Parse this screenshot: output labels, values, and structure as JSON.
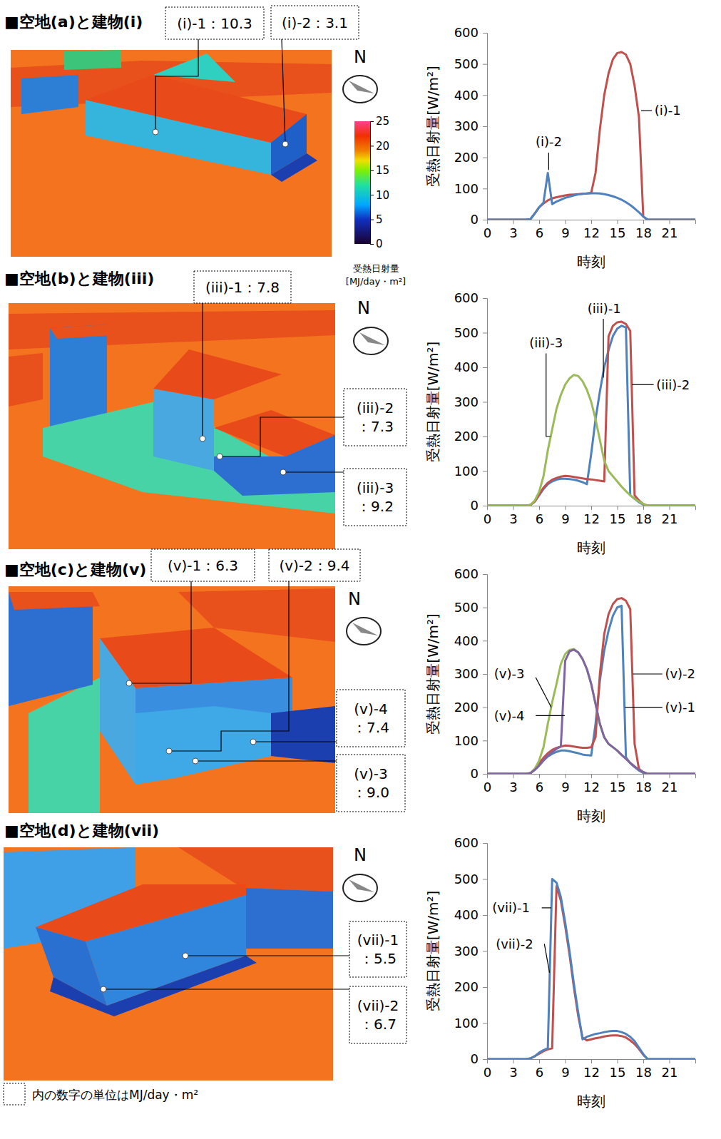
{
  "chart_data": [
    {
      "type": "line",
      "x_label": "時刻",
      "y_label": "受熱日射量[W/m²]",
      "x": [
        0,
        0.5,
        1,
        1.5,
        2,
        2.5,
        3,
        3.5,
        4,
        4.5,
        5,
        5.5,
        6,
        6.5,
        7,
        7.5,
        8,
        8.5,
        9,
        9.5,
        10,
        10.5,
        11,
        11.5,
        12,
        12.5,
        13,
        13.5,
        14,
        14.5,
        15,
        15.5,
        16,
        16.5,
        17,
        17.5,
        18,
        18.5,
        19,
        19.5,
        20,
        20.5,
        21,
        21.5,
        22,
        22.5,
        23,
        23.5,
        24
      ],
      "xlim": [
        0,
        24
      ],
      "xticks": [
        0,
        3,
        6,
        9,
        12,
        15,
        18,
        21
      ],
      "ylim": [
        0,
        600
      ],
      "yticks": [
        0,
        100,
        200,
        300,
        400,
        500,
        600
      ],
      "grid": false,
      "series": [
        {
          "name": "(i)-1",
          "color": "#c0504d",
          "values": [
            0,
            0,
            0,
            0,
            0,
            0,
            0,
            0,
            0,
            0,
            2,
            20,
            40,
            52,
            62,
            68,
            72,
            75,
            78,
            80,
            81,
            82,
            83,
            84,
            86,
            150,
            290,
            400,
            470,
            515,
            535,
            538,
            530,
            500,
            430,
            330,
            10,
            0,
            0,
            0,
            0,
            0,
            0,
            0,
            0,
            0,
            0,
            0,
            0
          ]
        },
        {
          "name": "(i)-2",
          "color": "#4f81bd",
          "values": [
            0,
            0,
            0,
            0,
            0,
            0,
            0,
            0,
            0,
            0,
            2,
            20,
            40,
            55,
            150,
            50,
            58,
            64,
            70,
            74,
            78,
            81,
            83,
            84,
            85,
            85,
            84,
            82,
            79,
            75,
            70,
            64,
            56,
            47,
            36,
            24,
            10,
            0,
            0,
            0,
            0,
            0,
            0,
            0,
            0,
            0,
            0,
            0,
            0
          ]
        }
      ]
    },
    {
      "type": "line",
      "x_label": "時刻",
      "y_label": "受熱日射量[W/m²]",
      "x": [
        0,
        0.5,
        1,
        1.5,
        2,
        2.5,
        3,
        3.5,
        4,
        4.5,
        5,
        5.5,
        6,
        6.5,
        7,
        7.5,
        8,
        8.5,
        9,
        9.5,
        10,
        10.5,
        11,
        11.5,
        12,
        12.5,
        13,
        13.5,
        14,
        14.5,
        15,
        15.5,
        16,
        16.5,
        17,
        17.5,
        18,
        18.5,
        19,
        19.5,
        20,
        20.5,
        21,
        21.5,
        22,
        22.5,
        23,
        23.5,
        24
      ],
      "xlim": [
        0,
        24
      ],
      "xticks": [
        0,
        3,
        6,
        9,
        12,
        15,
        18,
        21
      ],
      "ylim": [
        0,
        600
      ],
      "yticks": [
        0,
        100,
        200,
        300,
        400,
        500,
        600
      ],
      "grid": false,
      "series": [
        {
          "name": "(iii)-1",
          "color": "#4f81bd",
          "values": [
            0,
            0,
            0,
            0,
            0,
            0,
            0,
            0,
            0,
            0,
            2,
            12,
            30,
            48,
            62,
            70,
            75,
            78,
            78,
            77,
            75,
            72,
            68,
            62,
            150,
            250,
            330,
            400,
            450,
            490,
            512,
            520,
            515,
            30,
            20,
            10,
            3,
            0,
            0,
            0,
            0,
            0,
            0,
            0,
            0,
            0,
            0,
            0,
            0
          ]
        },
        {
          "name": "(iii)-2",
          "color": "#c0504d",
          "values": [
            0,
            0,
            0,
            0,
            0,
            0,
            0,
            0,
            0,
            0,
            2,
            12,
            32,
            52,
            66,
            75,
            80,
            84,
            86,
            85,
            83,
            81,
            79,
            77,
            76,
            74,
            72,
            70,
            490,
            520,
            530,
            532,
            525,
            505,
            30,
            15,
            5,
            0,
            0,
            0,
            0,
            0,
            0,
            0,
            0,
            0,
            0,
            0,
            0
          ]
        },
        {
          "name": "(iii)-3",
          "color": "#9bbb59",
          "values": [
            0,
            0,
            0,
            0,
            0,
            0,
            0,
            0,
            0,
            0,
            2,
            15,
            40,
            85,
            160,
            220,
            280,
            320,
            350,
            368,
            378,
            375,
            360,
            335,
            300,
            250,
            190,
            130,
            100,
            85,
            70,
            55,
            42,
            30,
            20,
            12,
            5,
            0,
            0,
            0,
            0,
            0,
            0,
            0,
            0,
            0,
            0,
            0,
            0
          ]
        }
      ]
    },
    {
      "type": "line",
      "x_label": "時刻",
      "y_label": "受熱日射量[W/m²]",
      "x": [
        0,
        0.5,
        1,
        1.5,
        2,
        2.5,
        3,
        3.5,
        4,
        4.5,
        5,
        5.5,
        6,
        6.5,
        7,
        7.5,
        8,
        8.5,
        9,
        9.5,
        10,
        10.5,
        11,
        11.5,
        12,
        12.5,
        13,
        13.5,
        14,
        14.5,
        15,
        15.5,
        16,
        16.5,
        17,
        17.5,
        18,
        18.5,
        19,
        19.5,
        20,
        20.5,
        21,
        21.5,
        22,
        22.5,
        23,
        23.5,
        24
      ],
      "xlim": [
        0,
        24
      ],
      "xticks": [
        0,
        3,
        6,
        9,
        12,
        15,
        18,
        21
      ],
      "ylim": [
        0,
        600
      ],
      "yticks": [
        0,
        100,
        200,
        300,
        400,
        500,
        600
      ],
      "grid": false,
      "series": [
        {
          "name": "(v)-1",
          "color": "#4f81bd",
          "values": [
            0,
            0,
            0,
            0,
            0,
            0,
            0,
            0,
            0,
            0,
            2,
            12,
            25,
            40,
            52,
            60,
            66,
            70,
            70,
            68,
            65,
            62,
            58,
            56,
            55,
            150,
            280,
            370,
            430,
            475,
            500,
            505,
            50,
            32,
            20,
            10,
            3,
            0,
            0,
            0,
            0,
            0,
            0,
            0,
            0,
            0,
            0,
            0,
            0
          ]
        },
        {
          "name": "(v)-2",
          "color": "#c0504d",
          "values": [
            0,
            0,
            0,
            0,
            0,
            0,
            0,
            0,
            0,
            0,
            2,
            15,
            32,
            48,
            62,
            72,
            78,
            82,
            85,
            84,
            82,
            80,
            78,
            78,
            80,
            110,
            300,
            420,
            480,
            510,
            525,
            528,
            520,
            495,
            90,
            15,
            5,
            0,
            0,
            0,
            0,
            0,
            0,
            0,
            0,
            0,
            0,
            0,
            0
          ]
        },
        {
          "name": "(v)-3",
          "color": "#9bbb59",
          "values": [
            0,
            0,
            0,
            0,
            0,
            0,
            0,
            0,
            0,
            0,
            2,
            15,
            40,
            80,
            150,
            215,
            270,
            330,
            360,
            372,
            375,
            365,
            345,
            315,
            270,
            210,
            150,
            110,
            90,
            80,
            70,
            57,
            45,
            33,
            22,
            12,
            5,
            0,
            0,
            0,
            0,
            0,
            0,
            0,
            0,
            0,
            0,
            0,
            0
          ]
        },
        {
          "name": "(v)-4",
          "color": "#8064a2",
          "values": [
            0,
            0,
            0,
            0,
            0,
            0,
            0,
            0,
            0,
            0,
            2,
            12,
            25,
            40,
            55,
            65,
            75,
            82,
            340,
            368,
            373,
            365,
            345,
            315,
            270,
            210,
            150,
            110,
            90,
            80,
            70,
            57,
            45,
            33,
            22,
            12,
            5,
            0,
            0,
            0,
            0,
            0,
            0,
            0,
            0,
            0,
            0,
            0,
            0
          ]
        }
      ]
    },
    {
      "type": "line",
      "x_label": "時刻",
      "y_label": "受熱日射量[W/m²]",
      "x": [
        0,
        0.5,
        1,
        1.5,
        2,
        2.5,
        3,
        3.5,
        4,
        4.5,
        5,
        5.5,
        6,
        6.5,
        7,
        7.5,
        8,
        8.5,
        9,
        9.5,
        10,
        10.5,
        11,
        11.5,
        12,
        12.5,
        13,
        13.5,
        14,
        14.5,
        15,
        15.5,
        16,
        16.5,
        17,
        17.5,
        18,
        18.5,
        19,
        19.5,
        20,
        20.5,
        21,
        21.5,
        22,
        22.5,
        23,
        23.5,
        24
      ],
      "xlim": [
        0,
        24
      ],
      "xticks": [
        0,
        3,
        6,
        9,
        12,
        15,
        18,
        21
      ],
      "ylim": [
        0,
        600
      ],
      "yticks": [
        0,
        100,
        200,
        300,
        400,
        500,
        600
      ],
      "grid": false,
      "series": [
        {
          "name": "(vii)-1",
          "color": "#c0504d",
          "values": [
            0,
            0,
            0,
            0,
            0,
            0,
            0,
            0,
            0,
            0,
            2,
            8,
            15,
            22,
            27,
            30,
            480,
            440,
            370,
            290,
            200,
            120,
            60,
            52,
            55,
            58,
            60,
            63,
            65,
            66,
            66,
            64,
            60,
            52,
            42,
            28,
            12,
            0,
            0,
            0,
            0,
            0,
            0,
            0,
            0,
            0,
            0,
            0,
            0
          ]
        },
        {
          "name": "(vii)-2",
          "color": "#4f81bd",
          "values": [
            0,
            0,
            0,
            0,
            0,
            0,
            0,
            0,
            0,
            0,
            2,
            8,
            18,
            25,
            30,
            500,
            490,
            450,
            380,
            300,
            210,
            130,
            55,
            62,
            66,
            70,
            72,
            75,
            77,
            78,
            78,
            75,
            70,
            62,
            50,
            32,
            14,
            0,
            0,
            0,
            0,
            0,
            0,
            0,
            0,
            0,
            0,
            0,
            0
          ]
        }
      ]
    }
  ],
  "scenes": [
    {
      "title": "■空地(a)と建物(i)",
      "callouts": [
        "(i)-1：10.3",
        "(i)-2：3.1"
      ]
    },
    {
      "title": "■空地(b)と建物(iii)",
      "callouts": [
        "(iii)-1：7.8",
        "(iii)-2：7.3",
        "(iii)-3：9.2"
      ]
    },
    {
      "title": "■空地(c)と建物(v)",
      "callouts": [
        "(v)-1：6.3",
        "(v)-2：9.4",
        "(v)-3：9.0",
        "(v)-4：7.4"
      ]
    },
    {
      "title": "■空地(d)と建物(vii)",
      "callouts": [
        "(vii)-1：5.5",
        "(vii)-2：6.7"
      ]
    }
  ],
  "north_label": "N",
  "colorbar": {
    "title": "受熱日射量",
    "unit": "[MJ/day・m²]",
    "range": [
      0,
      25
    ],
    "ticks": [
      0,
      5,
      10,
      15,
      20,
      25
    ]
  },
  "note": "内の数字の単位はMJ/day・m²"
}
